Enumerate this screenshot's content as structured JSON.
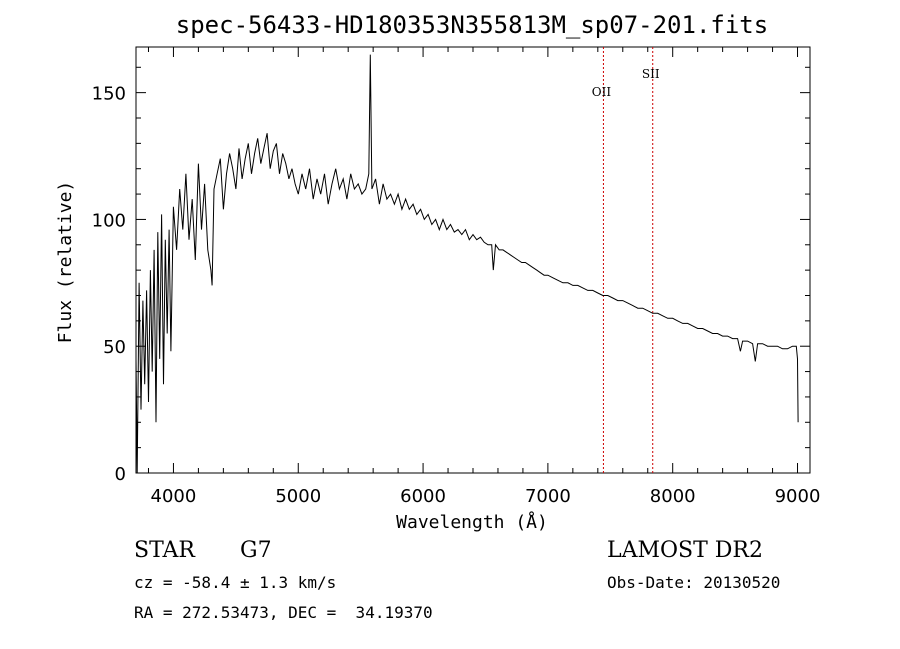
{
  "chart_data": {
    "type": "line",
    "title": "spec-56433-HD180353N355813M_sp07-201.fits",
    "xlabel": "Wavelength (Å)",
    "ylabel": "Flux (relative)",
    "xlim": [
      3700,
      9100
    ],
    "ylim": [
      0,
      168
    ],
    "xticks": [
      4000,
      5000,
      6000,
      7000,
      8000,
      9000
    ],
    "xtick_labels": [
      "4000",
      "5000",
      "6000",
      "7000",
      "8000",
      "9000"
    ],
    "yticks": [
      0,
      50,
      100,
      150
    ],
    "ytick_labels": [
      "0",
      "50",
      "100",
      "150"
    ],
    "grid": false,
    "series": [
      {
        "line_color": "#000000",
        "x": [
          3700,
          3710,
          3725,
          3740,
          3755,
          3770,
          3785,
          3800,
          3815,
          3830,
          3845,
          3860,
          3875,
          3890,
          3905,
          3920,
          3935,
          3950,
          3965,
          3980,
          4000,
          4025,
          4050,
          4075,
          4100,
          4125,
          4150,
          4175,
          4200,
          4225,
          4250,
          4275,
          4300,
          4310,
          4325,
          4350,
          4375,
          4400,
          4425,
          4450,
          4475,
          4500,
          4525,
          4550,
          4575,
          4600,
          4625,
          4650,
          4675,
          4700,
          4725,
          4750,
          4775,
          4800,
          4825,
          4850,
          4875,
          4900,
          4925,
          4950,
          4975,
          5000,
          5030,
          5060,
          5090,
          5120,
          5150,
          5180,
          5210,
          5240,
          5270,
          5300,
          5330,
          5360,
          5390,
          5420,
          5450,
          5480,
          5510,
          5540,
          5565,
          5577,
          5590,
          5620,
          5650,
          5680,
          5710,
          5740,
          5770,
          5800,
          5830,
          5860,
          5890,
          5920,
          5950,
          5980,
          6010,
          6040,
          6070,
          6100,
          6130,
          6160,
          6190,
          6220,
          6250,
          6280,
          6310,
          6340,
          6370,
          6400,
          6430,
          6460,
          6490,
          6520,
          6550,
          6563,
          6580,
          6610,
          6640,
          6670,
          6700,
          6730,
          6760,
          6790,
          6820,
          6850,
          6880,
          6910,
          6940,
          6970,
          7000,
          7040,
          7080,
          7120,
          7160,
          7200,
          7240,
          7280,
          7320,
          7360,
          7400,
          7440,
          7480,
          7520,
          7560,
          7600,
          7640,
          7680,
          7720,
          7760,
          7800,
          7840,
          7880,
          7920,
          7960,
          8000,
          8040,
          8080,
          8120,
          8160,
          8200,
          8240,
          8280,
          8320,
          8360,
          8400,
          8440,
          8480,
          8520,
          8542,
          8560,
          8600,
          8640,
          8662,
          8680,
          8720,
          8760,
          8800,
          8840,
          8880,
          8920,
          8960,
          8990,
          9000,
          9005
        ],
        "y": [
          45,
          0,
          75,
          25,
          68,
          35,
          72,
          28,
          80,
          40,
          88,
          20,
          95,
          45,
          102,
          35,
          92,
          55,
          96,
          48,
          105,
          88,
          112,
          96,
          118,
          92,
          108,
          84,
          122,
          96,
          114,
          88,
          80,
          74,
          112,
          118,
          124,
          104,
          118,
          126,
          120,
          112,
          128,
          116,
          124,
          130,
          118,
          126,
          132,
          122,
          128,
          134,
          120,
          127,
          130,
          118,
          126,
          122,
          116,
          120,
          114,
          110,
          118,
          112,
          120,
          108,
          116,
          110,
          118,
          106,
          114,
          120,
          112,
          116,
          108,
          118,
          112,
          114,
          110,
          112,
          118,
          165,
          112,
          116,
          106,
          114,
          108,
          110,
          106,
          110,
          104,
          108,
          104,
          106,
          102,
          104,
          100,
          102,
          98,
          100,
          96,
          100,
          96,
          98,
          95,
          96,
          94,
          96,
          92,
          94,
          92,
          93,
          91,
          90,
          90,
          80,
          90,
          88,
          88,
          87,
          86,
          85,
          84,
          83,
          83,
          82,
          81,
          80,
          79,
          78,
          78,
          77,
          76,
          75,
          75,
          74,
          74,
          73,
          72,
          72,
          71,
          70,
          70,
          69,
          68,
          68,
          67,
          66,
          65,
          65,
          64,
          63,
          63,
          62,
          61,
          61,
          60,
          59,
          59,
          58,
          57,
          57,
          56,
          55,
          55,
          54,
          54,
          53,
          53,
          48,
          52,
          52,
          51,
          44,
          51,
          51,
          50,
          50,
          50,
          49,
          49,
          50,
          50,
          45,
          20
        ]
      }
    ],
    "vlines": [
      {
        "x": 7445,
        "label": "OII",
        "color": "#cc0000"
      },
      {
        "x": 7840,
        "label": "SII",
        "color": "#cc0000"
      }
    ]
  },
  "info": {
    "object_class": "STAR",
    "subclass": "G7",
    "redshift": "cz = -58.4 ± 1.3 km/s",
    "coords": "RA = 272.53473, DEC =  34.19370",
    "survey": "LAMOST DR2",
    "obs_date": "Obs-Date: 20130520"
  }
}
